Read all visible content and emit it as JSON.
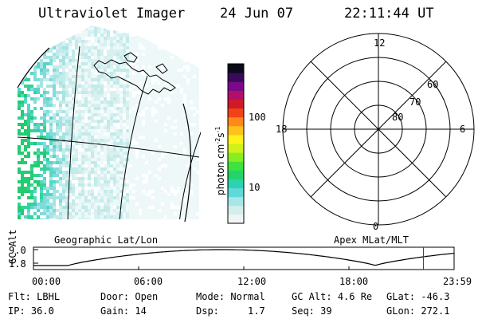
{
  "header": {
    "title": "Ultraviolet Imager",
    "date": "24 Jun 07",
    "time": "22:11:44 UT"
  },
  "left_panel": {
    "caption": "Geographic Lat/Lon"
  },
  "right_panel": {
    "caption": "Apex MLat/MLT",
    "mlt_labels": {
      "top": "12",
      "left": "18",
      "right": "6",
      "bottom": "0"
    },
    "lat_labels": [
      "60",
      "70",
      "80"
    ]
  },
  "colorbar": {
    "unit": "photon cm",
    "exp1": "-2",
    "mid": "s",
    "exp2": "-1",
    "ticks": [
      "100",
      "10"
    ]
  },
  "altitude_plot": {
    "ylabel": "GC Alt",
    "ymax_label": "9.0",
    "ymin_label": "1.8",
    "x_ticks": [
      "00:00",
      "06:00",
      "12:00",
      "18:00",
      "23:59"
    ],
    "current_time_fraction": 0.927
  },
  "info": {
    "row1": [
      {
        "label": "Flt:",
        "value": "LBHL"
      },
      {
        "label": "Door:",
        "value": "Open"
      },
      {
        "label": "Mode:",
        "value": "Normal"
      },
      {
        "label": "GC Alt:",
        "value": "4.6 Re"
      },
      {
        "label": "GLat:",
        "value": "-46.3"
      }
    ],
    "row2": [
      {
        "label": "IP:",
        "value": "36.0"
      },
      {
        "label": "Gain:",
        "value": "14"
      },
      {
        "label": "Dsp:",
        "value": "1.7"
      },
      {
        "label": "Seq:",
        "value": "39"
      },
      {
        "label": "GLon:",
        "value": "272.1"
      }
    ]
  },
  "colors": {
    "colorbar": [
      "#f2f4f4",
      "#d4eeee",
      "#a8e6e6",
      "#5fd9d9",
      "#2ad4b0",
      "#22d46a",
      "#3ee23e",
      "#88ee22",
      "#d2f01a",
      "#fff21a",
      "#ffc21a",
      "#ff8a1a",
      "#f04418",
      "#d01a2a",
      "#b0106a",
      "#7a0a8a",
      "#3a0a5a",
      "#0a0a1a"
    ],
    "data_high": "#22cc88",
    "marker": "#cc0000"
  }
}
